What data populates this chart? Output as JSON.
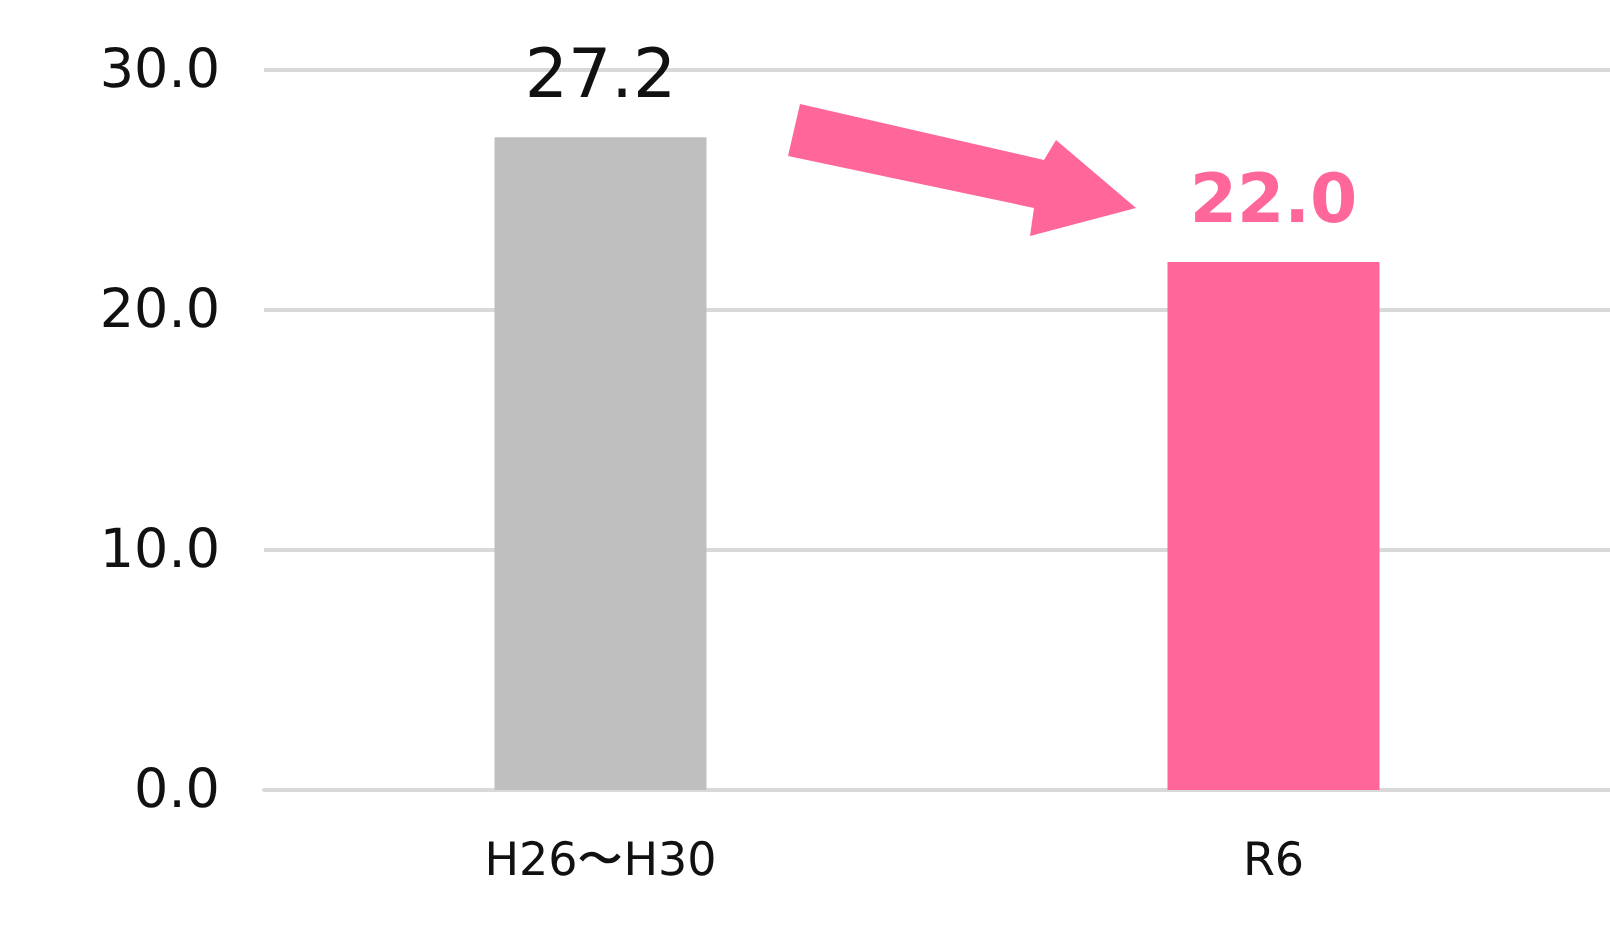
{
  "chart_data": {
    "type": "bar",
    "categories": [
      "H26〜H30",
      "R6"
    ],
    "values": [
      27.2,
      22.0
    ],
    "colors": [
      "#bfbfbf",
      "#ff6699"
    ],
    "value_labels": [
      "27.2",
      "22.0"
    ],
    "ylim": [
      0,
      30
    ],
    "yticks": [
      {
        "value": 0,
        "label": "0.0"
      },
      {
        "value": 10,
        "label": "10.0"
      },
      {
        "value": 20,
        "label": "20.0"
      },
      {
        "value": 30,
        "label": "30.0"
      }
    ],
    "grid": "y"
  }
}
